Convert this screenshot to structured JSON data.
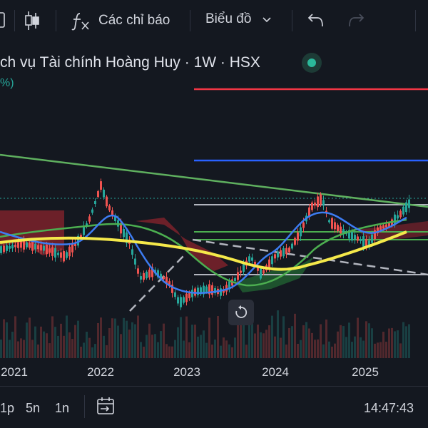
{
  "toolbar": {
    "indicators_label": "Các chỉ báo",
    "chart_type_label": "Biểu đồ"
  },
  "legend": {
    "title": "ch vụ Tài chính Hoàng Huy · 1W · HSX",
    "change_fragment": "%)"
  },
  "chart_data": {
    "type": "line",
    "x_tick_labels": [
      "2021",
      "2022",
      "2023",
      "2024",
      "2025"
    ],
    "series": []
  },
  "colors": {
    "background": "#141820",
    "up": "#26a69a",
    "down": "#ef5350",
    "ma_slow": "#f5e94a",
    "ma_fast": "#3d7cf2",
    "ma_mid": "#4caf50",
    "trendline": "#5fb05f",
    "level_red": "#f23645",
    "level_blue": "#2962ff",
    "level_gray": "#b2b5be",
    "level_green": "#4caf50"
  },
  "bottom": {
    "ranges": [
      "1p",
      "5n",
      "1n"
    ],
    "time": "14:47:43"
  },
  "icons": {
    "candle": "candlestick-icon",
    "fx": "fx-icon",
    "chevron": "chevron-down-icon",
    "undo": "undo-icon",
    "redo": "redo-icon",
    "reset": "reset-icon",
    "goto": "goto-date-icon"
  }
}
